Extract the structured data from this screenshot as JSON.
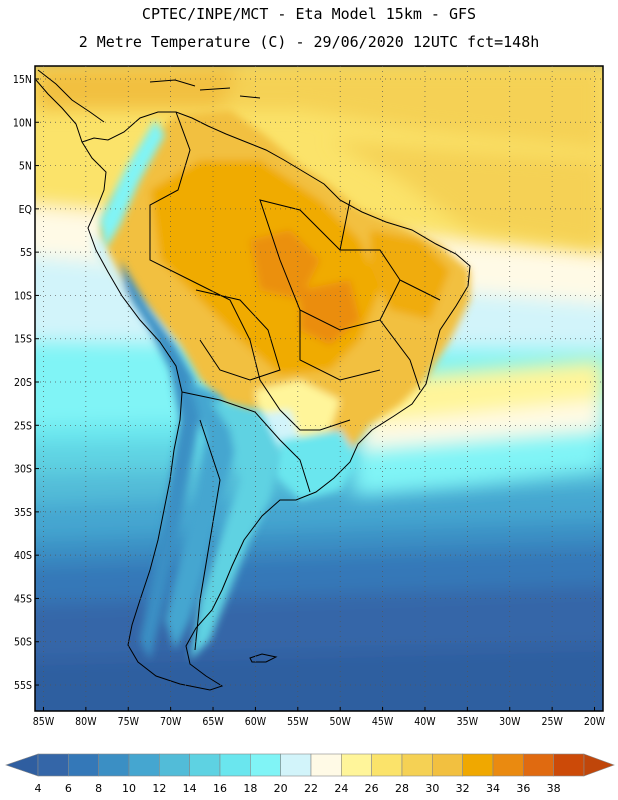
{
  "header": {
    "line1": "CPTEC/INPE/MCT  -   Eta Model 15km  -  GFS",
    "line2": "2 Metre Temperature (C) - 29/06/2020 12UTC fct=148h"
  },
  "map": {
    "lat_labels": [
      "15N",
      "10N",
      "5N",
      "EQ",
      "5S",
      "10S",
      "15S",
      "20S",
      "25S",
      "30S",
      "35S",
      "40S",
      "45S",
      "50S",
      "55S"
    ],
    "lon_labels": [
      "85W",
      "80W",
      "75W",
      "70W",
      "65W",
      "60W",
      "55W",
      "50W",
      "45W",
      "40W",
      "35W",
      "30W",
      "25W",
      "20W"
    ],
    "lon_range": [
      -86,
      -19
    ],
    "lat_range": [
      16.5,
      -58
    ]
  },
  "colorbar": {
    "labels": [
      "4",
      "6",
      "8",
      "10",
      "12",
      "14",
      "16",
      "18",
      "20",
      "22",
      "24",
      "26",
      "28",
      "30",
      "32",
      "34",
      "36",
      "38"
    ],
    "colors": [
      "#3466a8",
      "#3478b8",
      "#3b8fc4",
      "#45a6d0",
      "#52bcd8",
      "#5ed2e2",
      "#6ae6ee",
      "#80f4f6",
      "#d2f4fa",
      "#fffae6",
      "#fff59a",
      "#fbe36a",
      "#f5d154",
      "#f2c040",
      "#f0a800",
      "#ea8a10",
      "#e06a10",
      "#cc4a08"
    ],
    "left_arrow_color": "#2f5ea0",
    "right_arrow_color": "#c0460a"
  }
}
